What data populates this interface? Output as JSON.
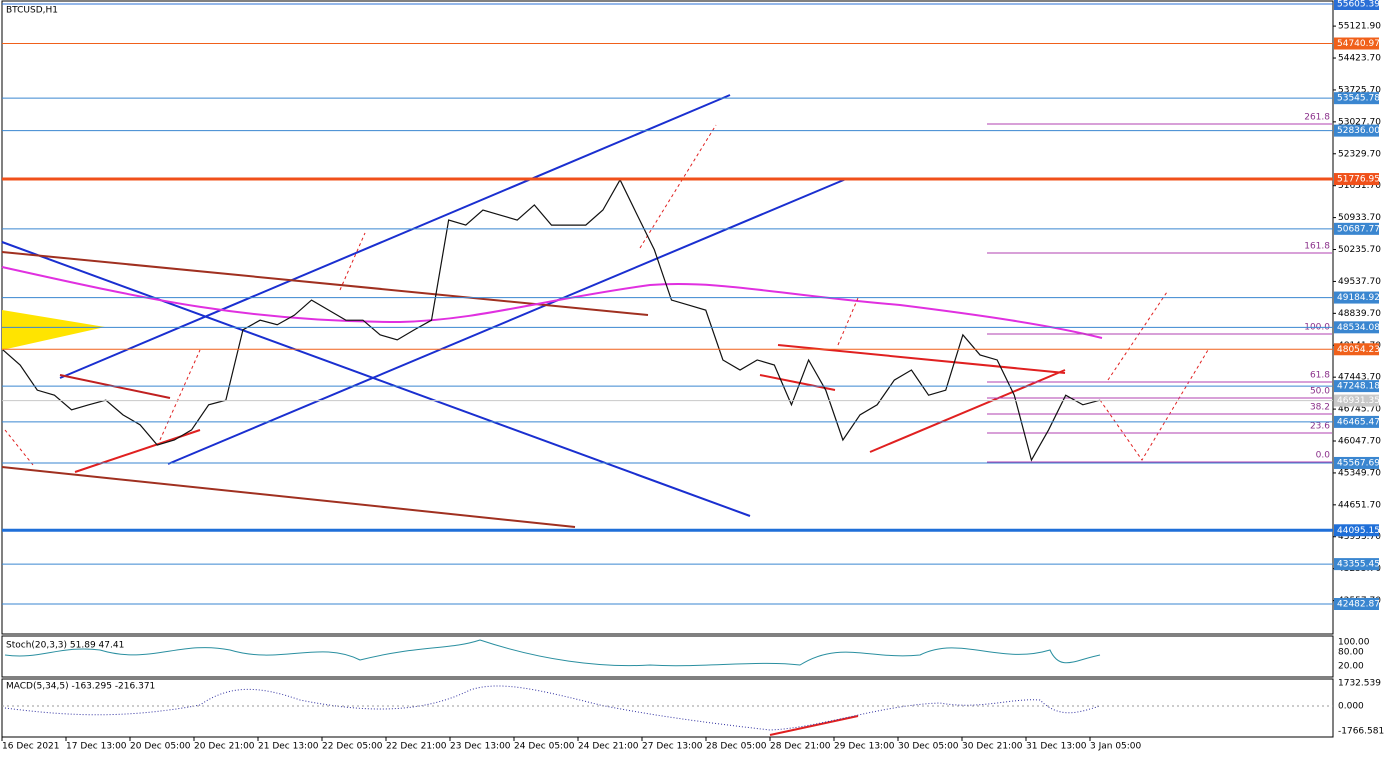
{
  "symbol": "BTCUSD,H1",
  "price_ticks": [
    {
      "value": 55121.9,
      "label": "55121.90"
    },
    {
      "value": 54423.7,
      "label": "54423.70"
    },
    {
      "value": 53725.7,
      "label": "53725.70"
    },
    {
      "value": 53027.7,
      "label": "53027.70"
    },
    {
      "value": 52329.7,
      "label": "52329.70"
    },
    {
      "value": 51631.7,
      "label": "51631.70"
    },
    {
      "value": 50933.7,
      "label": "50933.70"
    },
    {
      "value": 50235.7,
      "label": "50235.70"
    },
    {
      "value": 49537.7,
      "label": "49537.70"
    },
    {
      "value": 48839.7,
      "label": "48839.70"
    },
    {
      "value": 48141.7,
      "label": "48141.70"
    },
    {
      "value": 47443.7,
      "label": "47443.70"
    },
    {
      "value": 46745.7,
      "label": "46745.70"
    },
    {
      "value": 46047.7,
      "label": "46047.70"
    },
    {
      "value": 45349.7,
      "label": "45349.70"
    },
    {
      "value": 44651.7,
      "label": "44651.70"
    },
    {
      "value": 43953.7,
      "label": "43953.70"
    },
    {
      "value": 43255.7,
      "label": "43255.70"
    },
    {
      "value": 42557.7,
      "label": "42557.70"
    }
  ],
  "levels": [
    {
      "value": 55605.39,
      "label": "55605.39",
      "color": "#2a6fd6",
      "thick": false
    },
    {
      "value": 54740.97,
      "label": "54740.97",
      "color": "#f0601a",
      "thick": false
    },
    {
      "value": 53545.78,
      "label": "53545.78",
      "color": "#3a86d0",
      "thick": false
    },
    {
      "value": 52836,
      "label": "52836.00",
      "color": "#3a86d0",
      "thick": false
    },
    {
      "value": 51776.95,
      "label": "51776.95",
      "color": "#f0501a",
      "thick": true
    },
    {
      "value": 50687.77,
      "label": "50687.77",
      "color": "#3a86d0",
      "thick": false
    },
    {
      "value": 49184.92,
      "label": "49184.92",
      "color": "#3a86d0",
      "thick": false
    },
    {
      "value": 48534.08,
      "label": "48534.08",
      "color": "#3a86d0",
      "thick": false
    },
    {
      "value": 48054.23,
      "label": "48054.23",
      "color": "#f0601a",
      "thick": false
    },
    {
      "value": 47248.18,
      "label": "47248.18",
      "color": "#3a86d0",
      "thick": false
    },
    {
      "value": 46931.35,
      "label": "46931.35",
      "color": "#c8c8c8",
      "thick": false
    },
    {
      "value": 46465.47,
      "label": "46465.47",
      "color": "#3a86d0",
      "thick": false
    },
    {
      "value": 45567.69,
      "label": "45567.69",
      "color": "#3a86d0",
      "thick": false
    },
    {
      "value": 44095.15,
      "label": "44095.15",
      "color": "#1f6fd8",
      "thick": true
    },
    {
      "value": 43355.45,
      "label": "43355.45",
      "color": "#3a86d0",
      "thick": false
    },
    {
      "value": 42482.87,
      "label": "42482.87",
      "color": "#3a86d0",
      "thick": false
    }
  ],
  "fib_labels": [
    "261.8",
    "161.8",
    "100.0",
    "61.8",
    "50.0",
    "38.2",
    "23.6",
    "0.0"
  ],
  "time_labels": [
    "16 Dec 2021",
    "17 Dec 13:00",
    "20 Dec 05:00",
    "20 Dec 21:00",
    "21 Dec 13:00",
    "22 Dec 05:00",
    "22 Dec 21:00",
    "23 Dec 13:00",
    "24 Dec 05:00",
    "24 Dec 21:00",
    "27 Dec 13:00",
    "28 Dec 05:00",
    "28 Dec 21:00",
    "29 Dec 13:00",
    "30 Dec 05:00",
    "30 Dec 21:00",
    "31 Dec 13:00",
    "3 Jan 05:00"
  ],
  "stoch": {
    "label": "Stoch(20,3,3) 51.89 47.41",
    "ticks": [
      "100.00",
      "80.00",
      "20.00"
    ]
  },
  "macd": {
    "label": "MACD(5,34,5) -163.295 -216.371",
    "ticks": [
      "1732.539",
      "0.000",
      "-1766.581"
    ]
  },
  "price": {
    "color": "#111111",
    "closes": [
      48040,
      47710,
      47160,
      47050,
      46730,
      46840,
      46940,
      46620,
      46400,
      45960,
      46070,
      46290,
      46840,
      46940,
      48480,
      48690,
      48590,
      48800,
      49130,
      48910,
      48690,
      48690,
      48370,
      48260,
      48480,
      48690,
      50880,
      50770,
      51100,
      50990,
      50880,
      51210,
      50770,
      50770,
      50770,
      51100,
      51760,
      50990,
      50230,
      49130,
      49020,
      48910,
      47820,
      47600,
      47820,
      47710,
      46840,
      47820,
      47160,
      46070,
      46620,
      46840,
      47380,
      47600,
      47050,
      47160,
      48370,
      47930,
      47820,
      47050,
      45630,
      46290,
      47050,
      46840,
      46940
    ]
  }
}
